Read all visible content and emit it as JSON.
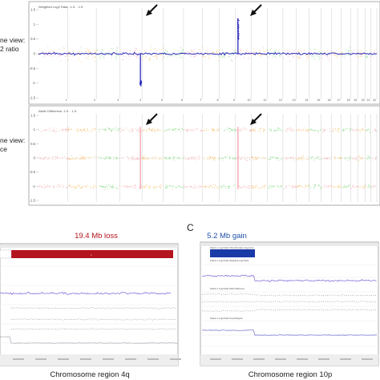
{
  "colors": {
    "pink": "#f4a0a8",
    "orange": "#f5b04a",
    "green": "#6ed36a",
    "blue": "#1a1ab8",
    "violet": "#7a5cd6",
    "loss_red": "#b4141e",
    "gain_blue": "#1f4fa8",
    "panel_border": "#9a9a9a",
    "grid": "#d6d6d6"
  },
  "figure_a": {
    "side_label_1": "ne view:\n2 ratio",
    "side_label_2": "ne view:\nce",
    "top_panel": {
      "header": "Weighted Log2 Ratio -1.5 .. 1.5",
      "y_ticks": [
        "1.5",
        "1",
        "0.5",
        "0",
        "-0.5",
        "-1",
        "-1.5"
      ],
      "x_ticks": [
        "1",
        "2",
        "3",
        "4",
        "5",
        "6",
        "7",
        "8",
        "9",
        "10",
        "11",
        "12",
        "13",
        "14",
        "15",
        "16",
        "17",
        "18",
        "19",
        "20",
        "21",
        "22"
      ]
    },
    "bottom_panel": {
      "header": "Allele Difference -1.5 .. 1.5",
      "y_ticks": [
        "1.5",
        "1",
        "0.5",
        "0",
        "-0.5",
        "-1",
        "-1.5"
      ]
    },
    "arrows": [
      "loss-arrow",
      "gain-arrow"
    ]
  },
  "figure_b": {
    "title": "19.4 Mb loss",
    "caption": "Chromosome region 4q"
  },
  "figure_c": {
    "letter": "C",
    "title": "5.2 Mb gain",
    "caption": "Chromosome region 10p",
    "track_labels": [
      "Patient 1 Log2 Ratio CNA Aberration Segments",
      "Patient 1 Log2 Ratio Weighted Log2 Ratio",
      "Patient 1 Log2 Ratio Allele Difference",
      "Patient 1 Log2 Ratio SmoothSignal"
    ]
  },
  "chart_data": [
    {
      "type": "scatter",
      "title": "Weighted Log2 Ratio -1.5 .. 1.5",
      "ylim": [
        -1.5,
        1.5
      ],
      "chromosomes": [
        "1",
        "2",
        "3",
        "4",
        "5",
        "6",
        "7",
        "8",
        "9",
        "10",
        "11",
        "12",
        "13",
        "14",
        "15",
        "16",
        "17",
        "18",
        "19",
        "20",
        "21",
        "22"
      ],
      "chromosome_widths": [
        2.49,
        2.42,
        1.98,
        1.9,
        1.81,
        1.71,
        1.59,
        1.45,
        1.38,
        1.34,
        1.35,
        1.33,
        1.14,
        1.07,
        1.02,
        0.9,
        0.83,
        0.8,
        0.59,
        0.64,
        0.47,
        0.51
      ],
      "baseline": 0.0,
      "events": [
        {
          "chromosome": "4",
          "region": "4q",
          "kind": "loss",
          "value": -1.0
        },
        {
          "chromosome": "10",
          "region": "10p",
          "kind": "gain",
          "value": 1.2
        }
      ]
    },
    {
      "type": "scatter",
      "title": "Allele Difference -1.5 .. 1.5",
      "ylim": [
        -1.5,
        1.5
      ],
      "bands": [
        1.0,
        0.0,
        -1.0
      ]
    }
  ]
}
